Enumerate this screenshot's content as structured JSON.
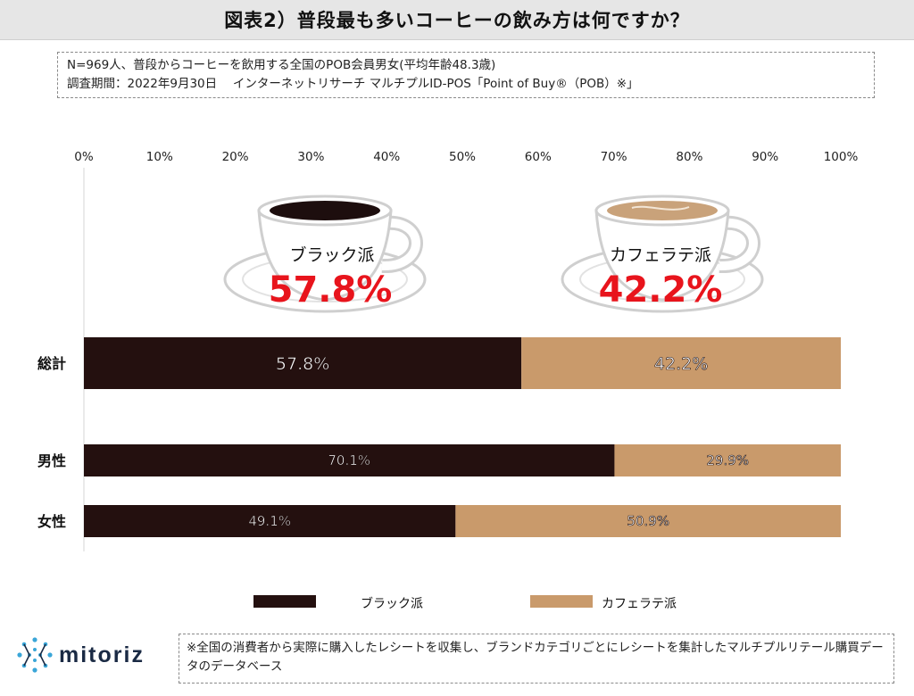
{
  "title": "図表2）普段最も多いコーヒーの飲み方は何ですか？",
  "info": {
    "line1": "N=969人、普段からコーヒーを飲用する全国のPOB会員男女(平均年齢48.3歳)",
    "line2": "調査期間：2022年9月30日　 インターネットリサーチ マルチプルID-POS「Point of Buy®（POB）※」"
  },
  "cups": [
    {
      "label": "ブラック派",
      "value_text": "57.8%",
      "coffee_color": "#1d0e0e"
    },
    {
      "label": "カフェラテ派",
      "value_text": "42.2%",
      "coffee_color": "#c9a27a"
    }
  ],
  "colors": {
    "black": "#24100f",
    "latte": "#c99a6b",
    "accent_red": "#e8141c"
  },
  "chart_data": {
    "type": "bar",
    "orientation": "horizontal-stacked-100",
    "categories": [
      "総計",
      "男性",
      "女性"
    ],
    "series": [
      {
        "name": "ブラック派",
        "values": [
          57.8,
          70.1,
          49.1
        ],
        "labels": [
          "57.8%",
          "70.1%",
          "49.1%"
        ]
      },
      {
        "name": "カフェラテ派",
        "values": [
          42.2,
          29.9,
          50.9
        ],
        "labels": [
          "42.2%",
          "29.9%",
          "50.9%"
        ]
      }
    ],
    "xlim": [
      0,
      100
    ],
    "ticks": [
      "0%",
      "10%",
      "20%",
      "30%",
      "40%",
      "50%",
      "60%",
      "70%",
      "80%",
      "90%",
      "100%"
    ],
    "legend_position": "bottom"
  },
  "logo": {
    "text": "mitoriz"
  },
  "footnote": "※全国の消費者から実際に購入したレシートを収集し、ブランドカテゴリごとにレシートを集計したマルチプルリテール購買データのデータベース"
}
